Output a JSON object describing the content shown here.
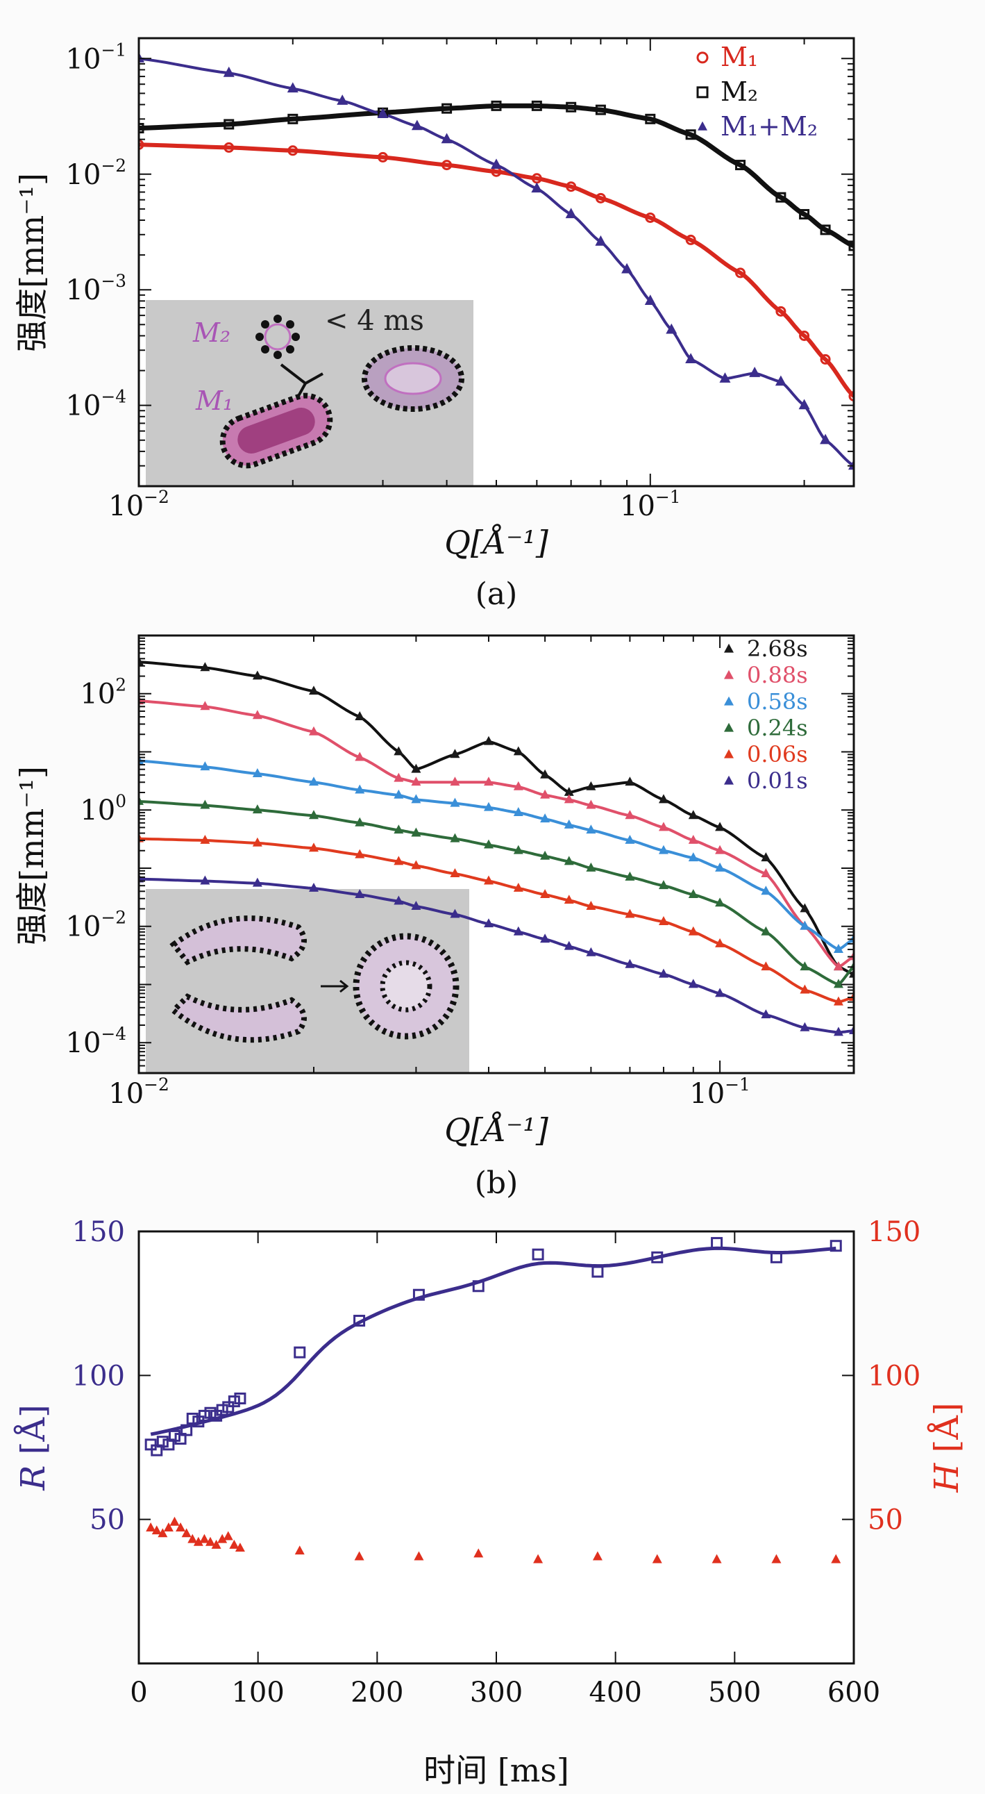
{
  "chart_data": [
    {
      "type": "scatter",
      "panel_label": "(a)",
      "xscale": "log",
      "yscale": "log",
      "xlim": [
        0.01,
        0.25
      ],
      "ylim": [
        2e-05,
        0.15
      ],
      "xlabel": "Q[Å⁻¹]",
      "ylabel": "强度[mm⁻¹]",
      "x_ticks": [
        {
          "v": 0.01,
          "b": "10",
          "e": "−2"
        },
        {
          "v": 0.1,
          "b": "10",
          "e": "−1"
        }
      ],
      "y_ticks": [
        {
          "v": 0.1,
          "b": "10",
          "e": "−1"
        },
        {
          "v": 0.01,
          "b": "10",
          "e": "−2"
        },
        {
          "v": 0.001,
          "b": "10",
          "e": "−3"
        },
        {
          "v": 0.0001,
          "b": "10",
          "e": "−4"
        }
      ],
      "legend_position": "top-right",
      "inset": {
        "label_m2": "M₂",
        "label_m1": "M₁",
        "note": "< 4 ms"
      },
      "series": [
        {
          "name": "M₁",
          "marker": "circle",
          "color": "#d8281e",
          "x": [
            0.01,
            0.015,
            0.02,
            0.03,
            0.04,
            0.05,
            0.06,
            0.07,
            0.08,
            0.1,
            0.12,
            0.15,
            0.18,
            0.2,
            0.22,
            0.25
          ],
          "y": [
            0.018,
            0.017,
            0.016,
            0.014,
            0.012,
            0.0105,
            0.0092,
            0.0078,
            0.0062,
            0.0042,
            0.0027,
            0.0014,
            0.00065,
            0.0004,
            0.00025,
            0.00012
          ]
        },
        {
          "name": "M₂",
          "marker": "square",
          "color": "#111111",
          "x": [
            0.01,
            0.015,
            0.02,
            0.03,
            0.04,
            0.05,
            0.06,
            0.07,
            0.08,
            0.1,
            0.12,
            0.15,
            0.18,
            0.2,
            0.22,
            0.25
          ],
          "y": [
            0.025,
            0.027,
            0.03,
            0.034,
            0.037,
            0.039,
            0.039,
            0.038,
            0.036,
            0.03,
            0.022,
            0.012,
            0.0063,
            0.0045,
            0.0033,
            0.0024
          ]
        },
        {
          "name": "M₁+M₂",
          "marker": "triangle",
          "color": "#3b2d8c",
          "x": [
            0.01,
            0.015,
            0.02,
            0.025,
            0.03,
            0.035,
            0.04,
            0.05,
            0.06,
            0.07,
            0.08,
            0.09,
            0.1,
            0.11,
            0.12,
            0.14,
            0.16,
            0.18,
            0.2,
            0.22,
            0.25
          ],
          "y": [
            0.1,
            0.075,
            0.055,
            0.043,
            0.033,
            0.026,
            0.02,
            0.012,
            0.0075,
            0.0045,
            0.0026,
            0.0015,
            0.0008,
            0.00045,
            0.00025,
            0.00017,
            0.00019,
            0.00016,
            0.0001,
            5e-05,
            3e-05
          ]
        }
      ]
    },
    {
      "type": "scatter",
      "panel_label": "(b)",
      "xscale": "log",
      "yscale": "log",
      "xlim": [
        0.01,
        0.17
      ],
      "ylim": [
        3e-05,
        1000
      ],
      "xlabel": "Q[Å⁻¹]",
      "ylabel": "强度[mm⁻¹]",
      "x_ticks": [
        {
          "v": 0.01,
          "b": "10",
          "e": "−2"
        },
        {
          "v": 0.1,
          "b": "10",
          "e": "−1"
        }
      ],
      "y_ticks": [
        {
          "v": 100,
          "b": "10",
          "e": "2"
        },
        {
          "v": 1,
          "b": "10",
          "e": "0"
        },
        {
          "v": 0.01,
          "b": "10",
          "e": "−2"
        },
        {
          "v": 0.0001,
          "b": "10",
          "e": "−4"
        }
      ],
      "legend_position": "top-right",
      "series": [
        {
          "name": "2.68s",
          "marker": "triangle",
          "color": "#1a1a1a",
          "x": [
            0.01,
            0.013,
            0.016,
            0.02,
            0.024,
            0.028,
            0.03,
            0.035,
            0.04,
            0.045,
            0.05,
            0.055,
            0.06,
            0.07,
            0.08,
            0.09,
            0.1,
            0.12,
            0.14,
            0.16,
            0.17
          ],
          "y": [
            350,
            280,
            200,
            110,
            40,
            10,
            5,
            9,
            15,
            10,
            4,
            2,
            2.5,
            3,
            1.5,
            0.8,
            0.5,
            0.15,
            0.02,
            0.002,
            0.0015
          ]
        },
        {
          "name": "0.88s",
          "marker": "triangle",
          "color": "#e0506a",
          "x": [
            0.01,
            0.013,
            0.016,
            0.02,
            0.024,
            0.028,
            0.03,
            0.035,
            0.04,
            0.045,
            0.05,
            0.055,
            0.06,
            0.07,
            0.08,
            0.09,
            0.1,
            0.12,
            0.14,
            0.16,
            0.17
          ],
          "y": [
            75,
            60,
            42,
            22,
            8,
            3.5,
            3,
            3,
            3,
            2.5,
            1.8,
            1.5,
            1.2,
            0.8,
            0.5,
            0.3,
            0.2,
            0.08,
            0.01,
            0.002,
            0.003
          ]
        },
        {
          "name": "0.58s",
          "marker": "triangle",
          "color": "#3a8fd8",
          "x": [
            0.01,
            0.013,
            0.016,
            0.02,
            0.024,
            0.028,
            0.03,
            0.035,
            0.04,
            0.045,
            0.05,
            0.055,
            0.06,
            0.07,
            0.08,
            0.09,
            0.1,
            0.12,
            0.14,
            0.16,
            0.17
          ],
          "y": [
            7,
            5.5,
            4.2,
            3,
            2.2,
            1.8,
            1.5,
            1.3,
            1.1,
            0.9,
            0.7,
            0.55,
            0.45,
            0.3,
            0.2,
            0.15,
            0.1,
            0.04,
            0.01,
            0.004,
            0.006
          ]
        },
        {
          "name": "0.24s",
          "marker": "triangle",
          "color": "#2e6b3a",
          "x": [
            0.01,
            0.013,
            0.016,
            0.02,
            0.024,
            0.028,
            0.03,
            0.035,
            0.04,
            0.045,
            0.05,
            0.055,
            0.06,
            0.07,
            0.08,
            0.09,
            0.1,
            0.12,
            0.14,
            0.16,
            0.17
          ],
          "y": [
            1.4,
            1.2,
            1.0,
            0.8,
            0.6,
            0.45,
            0.4,
            0.32,
            0.25,
            0.2,
            0.16,
            0.13,
            0.1,
            0.07,
            0.05,
            0.035,
            0.025,
            0.008,
            0.002,
            0.001,
            0.002
          ]
        },
        {
          "name": "0.06s",
          "marker": "triangle",
          "color": "#e03a1e",
          "x": [
            0.01,
            0.013,
            0.016,
            0.02,
            0.024,
            0.028,
            0.03,
            0.035,
            0.04,
            0.045,
            0.05,
            0.055,
            0.06,
            0.07,
            0.08,
            0.09,
            0.1,
            0.12,
            0.14,
            0.16,
            0.17
          ],
          "y": [
            0.32,
            0.3,
            0.27,
            0.22,
            0.17,
            0.13,
            0.11,
            0.08,
            0.06,
            0.045,
            0.035,
            0.028,
            0.022,
            0.016,
            0.012,
            0.008,
            0.005,
            0.002,
            0.0008,
            0.0005,
            0.0006
          ]
        },
        {
          "name": "0.01s",
          "marker": "triangle",
          "color": "#3b2d8c",
          "x": [
            0.01,
            0.013,
            0.016,
            0.02,
            0.024,
            0.028,
            0.03,
            0.035,
            0.04,
            0.045,
            0.05,
            0.055,
            0.06,
            0.07,
            0.08,
            0.09,
            0.1,
            0.12,
            0.14,
            0.16,
            0.17
          ],
          "y": [
            0.065,
            0.06,
            0.055,
            0.045,
            0.035,
            0.027,
            0.022,
            0.016,
            0.011,
            0.008,
            0.006,
            0.0045,
            0.0035,
            0.0022,
            0.0015,
            0.001,
            0.0007,
            0.0003,
            0.00018,
            0.00015,
            0.00016
          ]
        }
      ]
    },
    {
      "type": "scatter",
      "xscale": "linear",
      "yscale": "linear",
      "xlim": [
        0,
        600
      ],
      "ylim": [
        0,
        150
      ],
      "y2lim": [
        0,
        150
      ],
      "xlabel": "时间 [ms]",
      "ylabel_var": "R",
      "ylabel_unit": " [Å]",
      "y2label_var": "H",
      "y2label_unit": " [Å]",
      "x_ticks": [
        0,
        100,
        200,
        300,
        400,
        500,
        600
      ],
      "y_ticks": [
        50,
        100,
        150
      ],
      "y2_ticks": [
        50,
        100,
        150
      ],
      "series": [
        {
          "name": "R",
          "axis": "left",
          "marker": "square",
          "color": "#3b2d8c",
          "x": [
            10,
            15,
            20,
            25,
            30,
            35,
            40,
            45,
            50,
            55,
            60,
            65,
            70,
            75,
            80,
            85,
            135,
            185,
            235,
            285,
            335,
            385,
            435,
            485,
            535,
            585
          ],
          "y": [
            76,
            74,
            77,
            76,
            79,
            78,
            81,
            85,
            84,
            86,
            87,
            86,
            88,
            89,
            91,
            92,
            108,
            119,
            128,
            131,
            142,
            136,
            141,
            146,
            141,
            145
          ]
        },
        {
          "name": "H",
          "axis": "right",
          "marker": "triangle",
          "color": "#e0301e",
          "x": [
            10,
            15,
            20,
            25,
            30,
            35,
            40,
            45,
            50,
            55,
            60,
            65,
            70,
            75,
            80,
            85,
            135,
            185,
            235,
            285,
            335,
            385,
            435,
            485,
            535,
            585
          ],
          "y": [
            47,
            46,
            45,
            47,
            49,
            47,
            45,
            43,
            42,
            43,
            42,
            41,
            43,
            44,
            41,
            40,
            39,
            37,
            37,
            38,
            36,
            37,
            36,
            36,
            36,
            36
          ]
        }
      ]
    }
  ]
}
